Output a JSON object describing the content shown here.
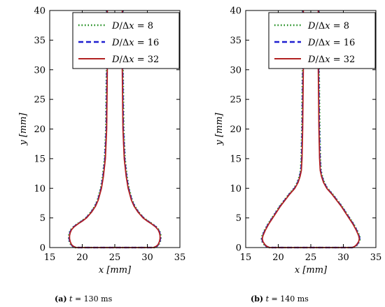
{
  "chart_data": [
    {
      "type": "line",
      "xlabel": "x [mm]",
      "ylabel": "y [mm]",
      "xlim": [
        15,
        35
      ],
      "ylim": [
        0,
        40
      ],
      "xticks": [
        "15",
        "20",
        "25",
        "30",
        "35"
      ],
      "yticks": [
        "0",
        "5",
        "10",
        "15",
        "20",
        "25",
        "30",
        "35",
        "40"
      ],
      "grid": false,
      "legend_position": "top-right",
      "caption": {
        "label": "(a)",
        "var": "t",
        "eq": "= 130 ms"
      },
      "series": [
        {
          "name": "D/Δx = 8",
          "label_parts": {
            "a": "D",
            "b": "/Δ",
            "c": "x",
            "d": " = 8"
          },
          "style": "dotted",
          "color": "#1a8a1a"
        },
        {
          "name": "D/Δx = 16",
          "label_parts": {
            "a": "D",
            "b": "/Δ",
            "c": "x",
            "d": " = 16"
          },
          "style": "dashed",
          "color": "#1f1fd0"
        },
        {
          "name": "D/Δx = 32",
          "label_parts": {
            "a": "D",
            "b": "/Δ",
            "c": "x",
            "d": " = 32"
          },
          "style": "solid",
          "color": "#b22222"
        }
      ],
      "profile": {
        "y": [
          40,
          35,
          30,
          25,
          20,
          15,
          12,
          10,
          8,
          7,
          6,
          5,
          4.5,
          4,
          3.5,
          3,
          2.5,
          2,
          1.5,
          1,
          0.5,
          0.2,
          0
        ],
        "x_right": [
          26.2,
          26.2,
          26.2,
          26.25,
          26.3,
          26.5,
          26.8,
          27.1,
          27.6,
          28,
          28.6,
          29.4,
          30,
          30.7,
          31.3,
          31.7,
          31.9,
          32,
          32,
          31.9,
          31.7,
          31.4,
          31
        ]
      }
    },
    {
      "type": "line",
      "xlabel": "x [mm]",
      "ylabel": "y [mm]",
      "xlim": [
        15,
        35
      ],
      "ylim": [
        0,
        40
      ],
      "xticks": [
        "15",
        "20",
        "25",
        "30",
        "35"
      ],
      "yticks": [
        "0",
        "5",
        "10",
        "15",
        "20",
        "25",
        "30",
        "35",
        "40"
      ],
      "grid": false,
      "legend_position": "top-right",
      "caption": {
        "label": "(b)",
        "var": "t",
        "eq": "= 140 ms"
      },
      "series": [
        {
          "name": "D/Δx = 8",
          "label_parts": {
            "a": "D",
            "b": "/Δ",
            "c": "x",
            "d": " = 8"
          },
          "style": "dotted",
          "color": "#1a8a1a"
        },
        {
          "name": "D/Δx = 16",
          "label_parts": {
            "a": "D",
            "b": "/Δ",
            "c": "x",
            "d": " = 16"
          },
          "style": "dashed",
          "color": "#1f1fd0"
        },
        {
          "name": "D/Δx = 32",
          "label_parts": {
            "a": "D",
            "b": "/Δ",
            "c": "x",
            "d": " = 32"
          },
          "style": "solid",
          "color": "#b22222"
        }
      ],
      "profile": {
        "y": [
          40,
          35,
          30,
          25,
          20,
          15,
          13,
          12,
          11,
          10,
          9,
          8,
          7,
          6,
          5,
          4,
          3,
          2,
          1.5,
          1,
          0.5,
          0.2,
          0
        ],
        "x_right": [
          26.2,
          26.2,
          26.2,
          26.25,
          26.3,
          26.4,
          26.5,
          26.7,
          27,
          27.5,
          28.3,
          29,
          29.7,
          30.3,
          30.9,
          31.5,
          32,
          32.4,
          32.5,
          32.4,
          32.1,
          31.8,
          31.4
        ]
      }
    }
  ]
}
